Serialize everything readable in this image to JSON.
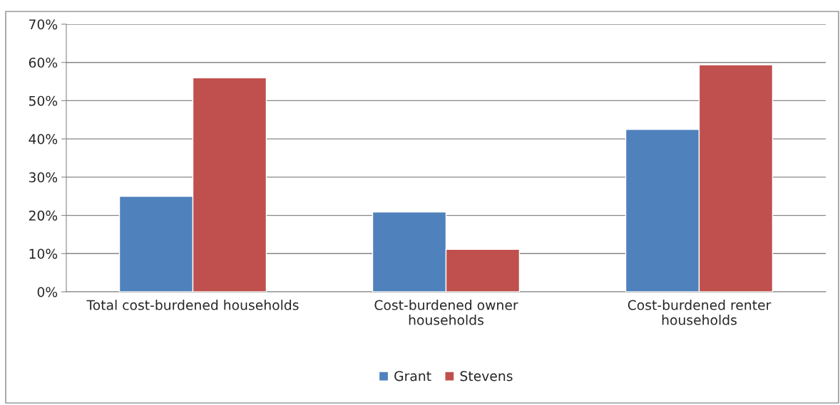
{
  "chart_data": {
    "type": "bar",
    "categories": [
      "Total cost-burdened households",
      "Cost-burdened owner\nhouseholds",
      "Cost-burdened renter\nhouseholds"
    ],
    "series": [
      {
        "name": "Grant",
        "color": "#4f81bd",
        "values": [
          25,
          20.9,
          42.5
        ]
      },
      {
        "name": "Stevens",
        "color": "#c0504d",
        "values": [
          56,
          11.1,
          59.4
        ]
      }
    ],
    "ylim": [
      0,
      70
    ],
    "yticks": [
      {
        "value": 0,
        "label": "0%"
      },
      {
        "value": 10,
        "label": "10%"
      },
      {
        "value": 20,
        "label": "20%"
      },
      {
        "value": 30,
        "label": "30%"
      },
      {
        "value": 40,
        "label": "40%"
      },
      {
        "value": 50,
        "label": "50%"
      },
      {
        "value": 60,
        "label": "60%"
      },
      {
        "value": 70,
        "label": "70%"
      }
    ],
    "grid": "y",
    "legend": "bottom"
  }
}
